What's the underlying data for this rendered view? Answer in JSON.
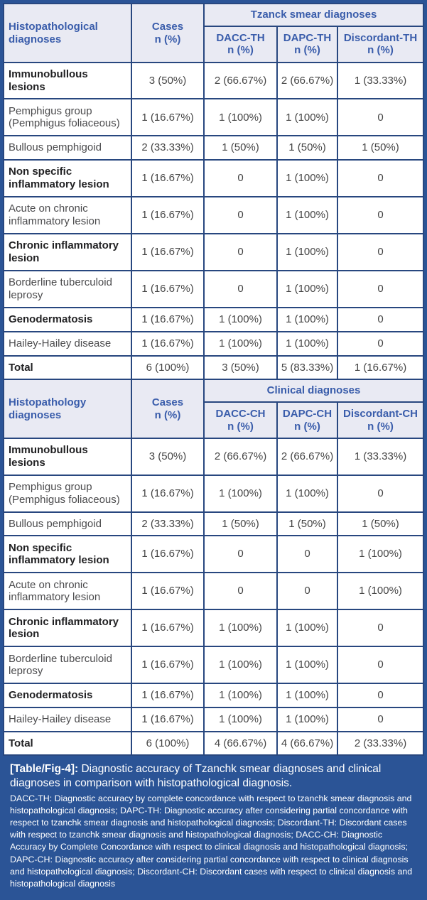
{
  "colors": {
    "frame_blue": "#2b5496",
    "table_border": "#28477f",
    "header_bg": "#e9eaf3",
    "header_text": "#3a5dab",
    "cell_text": "#454545",
    "caption_bg": "#2b5496",
    "caption_text": "#ffffff"
  },
  "table1": {
    "row_header": "Histopathological\ndiagnoses",
    "cases_header": "Cases\nn (%)",
    "group_header": "Tzanck smear diagnoses",
    "col_headers": [
      "DACC-TH\nn (%)",
      "DAPC-TH\nn (%)",
      "Discordant-TH\nn (%)"
    ],
    "rows": [
      {
        "label": "Immunobullous lesions",
        "bold": true,
        "twoline": false,
        "cases": "3 (50%)",
        "dacc": "2 (66.67%)",
        "dapc": "2 (66.67%)",
        "discordant": "1 (33.33%)"
      },
      {
        "label": "Pemphigus group\n(Pemphigus foliaceous)",
        "bold": false,
        "twoline": true,
        "cases": "1 (16.67%)",
        "dacc": "1 (100%)",
        "dapc": "1 (100%)",
        "discordant": "0"
      },
      {
        "label": "Bullous pemphigoid",
        "bold": false,
        "twoline": false,
        "cases": "2 (33.33%)",
        "dacc": "1 (50%)",
        "dapc": "1 (50%)",
        "discordant": "1 (50%)"
      },
      {
        "label": "Non specific\ninflammatory lesion",
        "bold": true,
        "twoline": true,
        "cases": "1 (16.67%)",
        "dacc": "0",
        "dapc": "1 (100%)",
        "discordant": "0"
      },
      {
        "label": "Acute on chronic\ninflammatory lesion",
        "bold": false,
        "twoline": true,
        "cases": "1 (16.67%)",
        "dacc": "0",
        "dapc": "1 (100%)",
        "discordant": "0"
      },
      {
        "label": "Chronic inflammatory\nlesion",
        "bold": true,
        "twoline": true,
        "cases": "1 (16.67%)",
        "dacc": "0",
        "dapc": "1 (100%)",
        "discordant": "0"
      },
      {
        "label": "Borderline tuberculoid\nleprosy",
        "bold": false,
        "twoline": true,
        "cases": "1 (16.67%)",
        "dacc": "0",
        "dapc": "1 (100%)",
        "discordant": "0"
      },
      {
        "label": "Genodermatosis",
        "bold": true,
        "twoline": false,
        "cases": "1 (16.67%)",
        "dacc": "1 (100%)",
        "dapc": "1 (100%)",
        "discordant": "0"
      },
      {
        "label": "Hailey-Hailey disease",
        "bold": false,
        "twoline": false,
        "cases": "1 (16.67%)",
        "dacc": "1 (100%)",
        "dapc": "1 (100%)",
        "discordant": "0"
      },
      {
        "label": "Total",
        "bold": true,
        "twoline": false,
        "cases": "6 (100%)",
        "dacc": "3 (50%)",
        "dapc": "5 (83.33%)",
        "discordant": "1 (16.67%)"
      }
    ]
  },
  "table2": {
    "row_header": "Histopathology\ndiagnoses",
    "cases_header": "Cases\nn (%)",
    "group_header": "Clinical diagnoses",
    "col_headers": [
      "DACC-CH\nn (%)",
      "DAPC-CH\nn (%)",
      "Discordant-CH\nn (%)"
    ],
    "rows": [
      {
        "label": "Immunobullous lesions",
        "bold": true,
        "twoline": false,
        "cases": "3 (50%)",
        "dacc": "2 (66.67%)",
        "dapc": "2 (66.67%)",
        "discordant": "1 (33.33%)"
      },
      {
        "label": "Pemphigus group\n(Pemphigus foliaceous)",
        "bold": false,
        "twoline": true,
        "cases": "1 (16.67%)",
        "dacc": "1 (100%)",
        "dapc": "1 (100%)",
        "discordant": "0"
      },
      {
        "label": "Bullous pemphigoid",
        "bold": false,
        "twoline": false,
        "cases": "2 (33.33%)",
        "dacc": "1 (50%)",
        "dapc": "1 (50%)",
        "discordant": "1 (50%)"
      },
      {
        "label": "Non specific\ninflammatory lesion",
        "bold": true,
        "twoline": true,
        "cases": "1 (16.67%)",
        "dacc": "0",
        "dapc": "0",
        "discordant": "1 (100%)"
      },
      {
        "label": "Acute on chronic\ninflammatory lesion",
        "bold": false,
        "twoline": true,
        "cases": "1 (16.67%)",
        "dacc": "0",
        "dapc": "0",
        "discordant": "1 (100%)"
      },
      {
        "label": "Chronic inflammatory\nlesion",
        "bold": true,
        "twoline": true,
        "cases": "1 (16.67%)",
        "dacc": "1 (100%)",
        "dapc": "1 (100%)",
        "discordant": "0"
      },
      {
        "label": "Borderline tuberculoid\nleprosy",
        "bold": false,
        "twoline": true,
        "cases": "1 (16.67%)",
        "dacc": "1 (100%)",
        "dapc": "1 (100%)",
        "discordant": "0"
      },
      {
        "label": "Genodermatosis",
        "bold": true,
        "twoline": false,
        "cases": "1 (16.67%)",
        "dacc": "1 (100%)",
        "dapc": "1 (100%)",
        "discordant": "0"
      },
      {
        "label": "Hailey-Hailey disease",
        "bold": false,
        "twoline": false,
        "cases": "1 (16.67%)",
        "dacc": "1 (100%)",
        "dapc": "1 (100%)",
        "discordant": "0"
      },
      {
        "label": "Total",
        "bold": true,
        "twoline": false,
        "cases": "6 (100%)",
        "dacc": "4 (66.67%)",
        "dapc": "4 (66.67%)",
        "discordant": "2 (33.33%)"
      }
    ]
  },
  "caption": {
    "tag": "[Table/Fig-4]:",
    "text": "Diagnostic accuracy of Tzanchk smear diagnoses and clinical diagnoses in comparison with histopathological diagnosis.",
    "footnote": "DACC-TH: Diagnostic accuracy by complete concordance with respect to tzanchk smear diagnosis and histopathological diagnosis; DAPC-TH: Diagnostic accuracy after considering partial concordance with respect to tzanchk smear diagnosis and histopathological diagnosis; Discordant-TH: Discordant cases with respect to tzanchk smear diagnosis and histopathological diagnosis; DACC-CH: Diagnostic Accuracy by Complete Concordance with respect to clinical diagnosis and histopathological diagnosis; DAPC-CH: Diagnostic accuracy after considering partial concordance with respect to clinical diagnosis and histopathological diagnosis; Discordant-CH: Discordant cases with respect to clinical diagnosis and histopathological diagnosis"
  }
}
